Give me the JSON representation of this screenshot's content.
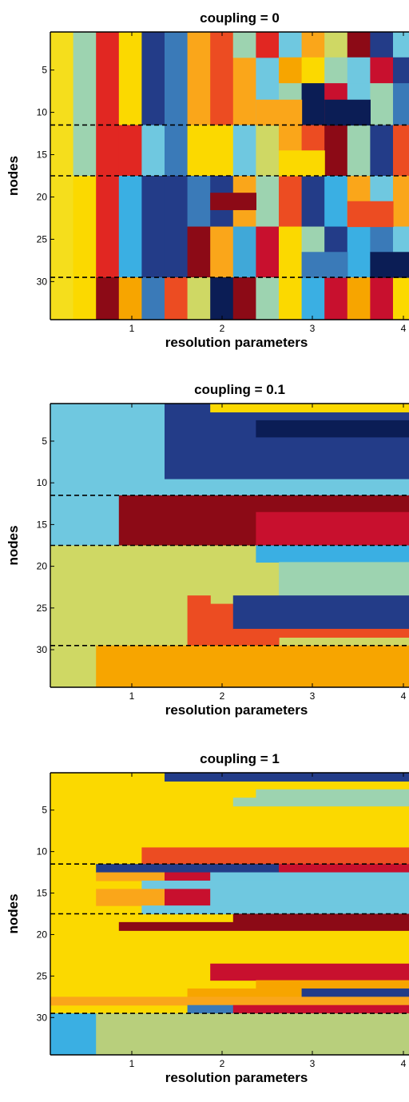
{
  "colors": {
    "Y": "#f5de1c",
    "A": "#9dd3b0",
    "R": "#e12722",
    "G": "#fbd900",
    "N": "#233c88",
    "B": "#3a7ab8",
    "O": "#faa61a",
    "F": "#ec4c22",
    "S": "#f7a500",
    "C": "#6fc8e0",
    "L": "#cfd864",
    "D": "#0b1d55",
    "M": "#8c0a16",
    "K": "#3aafe3",
    "P": "#c8102e",
    "E": "#40a8d8",
    "W": "#b8cf7c"
  },
  "chart_data": [
    {
      "type": "heatmap",
      "title": "coupling = 0",
      "xlabel": "resolution parameters",
      "ylabel": "nodes",
      "xticks": [
        "1",
        "2",
        "3",
        "4"
      ],
      "yticks": [
        "5",
        "10",
        "15",
        "20",
        "25",
        "30"
      ],
      "ylim": [
        0.5,
        34.5
      ],
      "xlim": [
        0.1,
        4.1
      ],
      "n_rows": 34,
      "separators": [
        11.5,
        17.5,
        29.5
      ],
      "layers": [
        {
          "x0": 0,
          "x1": 1,
          "y0": 1,
          "y1": 34,
          "c": "Y"
        },
        {
          "x0": 1,
          "x1": 2,
          "y0": 1,
          "y1": 17,
          "c": "A"
        },
        {
          "x0": 1,
          "x1": 2,
          "y0": 18,
          "y1": 34,
          "c": "G"
        },
        {
          "x0": 2,
          "x1": 3,
          "y0": 1,
          "y1": 29,
          "c": "R"
        },
        {
          "x0": 2,
          "x1": 3,
          "y0": 30,
          "y1": 34,
          "c": "M"
        },
        {
          "x0": 3,
          "x1": 4,
          "y0": 1,
          "y1": 11,
          "c": "G"
        },
        {
          "x0": 3,
          "x1": 4,
          "y0": 12,
          "y1": 17,
          "c": "R"
        },
        {
          "x0": 3,
          "x1": 4,
          "y0": 18,
          "y1": 29,
          "c": "K"
        },
        {
          "x0": 3,
          "x1": 4,
          "y0": 30,
          "y1": 34,
          "c": "S"
        },
        {
          "x0": 4,
          "x1": 5,
          "y0": 1,
          "y1": 11,
          "c": "N"
        },
        {
          "x0": 4,
          "x1": 5,
          "y0": 12,
          "y1": 17,
          "c": "C"
        },
        {
          "x0": 4,
          "x1": 5,
          "y0": 18,
          "y1": 29,
          "c": "N"
        },
        {
          "x0": 4,
          "x1": 5,
          "y0": 30,
          "y1": 34,
          "c": "B"
        },
        {
          "x0": 5,
          "x1": 6,
          "y0": 1,
          "y1": 17,
          "c": "B"
        },
        {
          "x0": 5,
          "x1": 6,
          "y0": 18,
          "y1": 29,
          "c": "N"
        },
        {
          "x0": 5,
          "x1": 6,
          "y0": 30,
          "y1": 34,
          "c": "F"
        },
        {
          "x0": 6,
          "x1": 7,
          "y0": 1,
          "y1": 11,
          "c": "O"
        },
        {
          "x0": 6,
          "x1": 7,
          "y0": 12,
          "y1": 17,
          "c": "G"
        },
        {
          "x0": 6,
          "x1": 7,
          "y0": 18,
          "y1": 23,
          "c": "B"
        },
        {
          "x0": 6,
          "x1": 7,
          "y0": 24,
          "y1": 29,
          "c": "M"
        },
        {
          "x0": 6,
          "x1": 7,
          "y0": 30,
          "y1": 34,
          "c": "L"
        },
        {
          "x0": 7,
          "x1": 8,
          "y0": 1,
          "y1": 11,
          "c": "F"
        },
        {
          "x0": 7,
          "x1": 8,
          "y0": 12,
          "y1": 17,
          "c": "G"
        },
        {
          "x0": 7,
          "x1": 8,
          "y0": 18,
          "y1": 23,
          "c": "N"
        },
        {
          "x0": 7,
          "x1": 8,
          "y0": 24,
          "y1": 29,
          "c": "O"
        },
        {
          "x0": 7,
          "x1": 8,
          "y0": 30,
          "y1": 34,
          "c": "D"
        },
        {
          "x0": 8,
          "x1": 9,
          "y0": 1,
          "y1": 11,
          "c": "O"
        },
        {
          "x0": 8,
          "x1": 9,
          "y0": 12,
          "y1": 17,
          "c": "C"
        },
        {
          "x0": 8,
          "x1": 9,
          "y0": 18,
          "y1": 23,
          "c": "O"
        },
        {
          "x0": 8,
          "x1": 9,
          "y0": 24,
          "y1": 29,
          "c": "E"
        },
        {
          "x0": 8,
          "x1": 9,
          "y0": 30,
          "y1": 34,
          "c": "M"
        },
        {
          "x0": 9,
          "x1": 10,
          "y0": 1,
          "y1": 11,
          "c": "C"
        },
        {
          "x0": 9,
          "x1": 10,
          "y0": 12,
          "y1": 17,
          "c": "L"
        },
        {
          "x0": 9,
          "x1": 10,
          "y0": 18,
          "y1": 23,
          "c": "A"
        },
        {
          "x0": 9,
          "x1": 10,
          "y0": 24,
          "y1": 29,
          "c": "P"
        },
        {
          "x0": 9,
          "x1": 10,
          "y0": 30,
          "y1": 34,
          "c": "A"
        },
        {
          "x0": 10,
          "x1": 11,
          "y0": 1,
          "y1": 11,
          "c": "A"
        },
        {
          "x0": 10,
          "x1": 11,
          "y0": 12,
          "y1": 17,
          "c": "O"
        },
        {
          "x0": 10,
          "x1": 11,
          "y0": 18,
          "y1": 23,
          "c": "F"
        },
        {
          "x0": 10,
          "x1": 11,
          "y0": 24,
          "y1": 29,
          "c": "G"
        },
        {
          "x0": 10,
          "x1": 11,
          "y0": 30,
          "y1": 34,
          "c": "G"
        },
        {
          "x0": 11,
          "x1": 12,
          "y0": 1,
          "y1": 11,
          "c": "D"
        },
        {
          "x0": 11,
          "x1": 12,
          "y0": 12,
          "y1": 17,
          "c": "F"
        },
        {
          "x0": 11,
          "x1": 12,
          "y0": 18,
          "y1": 23,
          "c": "N"
        },
        {
          "x0": 11,
          "x1": 12,
          "y0": 24,
          "y1": 29,
          "c": "A"
        },
        {
          "x0": 11,
          "x1": 12,
          "y0": 30,
          "y1": 34,
          "c": "K"
        },
        {
          "x0": 12,
          "x1": 13,
          "y0": 1,
          "y1": 11,
          "c": "P"
        },
        {
          "x0": 12,
          "x1": 13,
          "y0": 12,
          "y1": 17,
          "c": "M"
        },
        {
          "x0": 12,
          "x1": 13,
          "y0": 18,
          "y1": 23,
          "c": "K"
        },
        {
          "x0": 12,
          "x1": 13,
          "y0": 24,
          "y1": 29,
          "c": "N"
        },
        {
          "x0": 12,
          "x1": 13,
          "y0": 30,
          "y1": 34,
          "c": "P"
        },
        {
          "x0": 13,
          "x1": 14,
          "y0": 1,
          "y1": 11,
          "c": "C"
        },
        {
          "x0": 13,
          "x1": 14,
          "y0": 12,
          "y1": 17,
          "c": "A"
        },
        {
          "x0": 13,
          "x1": 14,
          "y0": 18,
          "y1": 23,
          "c": "O"
        },
        {
          "x0": 13,
          "x1": 14,
          "y0": 24,
          "y1": 29,
          "c": "K"
        },
        {
          "x0": 13,
          "x1": 14,
          "y0": 30,
          "y1": 34,
          "c": "S"
        },
        {
          "x0": 14,
          "x1": 15,
          "y0": 1,
          "y1": 11,
          "c": "A"
        },
        {
          "x0": 14,
          "x1": 15,
          "y0": 12,
          "y1": 17,
          "c": "N"
        },
        {
          "x0": 14,
          "x1": 15,
          "y0": 18,
          "y1": 23,
          "c": "C"
        },
        {
          "x0": 14,
          "x1": 15,
          "y0": 24,
          "y1": 29,
          "c": "B"
        },
        {
          "x0": 14,
          "x1": 15,
          "y0": 30,
          "y1": 34,
          "c": "P"
        },
        {
          "x0": 15,
          "x1": 16,
          "y0": 1,
          "y1": 11,
          "c": "B"
        },
        {
          "x0": 15,
          "x1": 16,
          "y0": 12,
          "y1": 17,
          "c": "F"
        },
        {
          "x0": 15,
          "x1": 16,
          "y0": 18,
          "y1": 23,
          "c": "O"
        },
        {
          "x0": 15,
          "x1": 16,
          "y0": 24,
          "y1": 29,
          "c": "C"
        },
        {
          "x0": 15,
          "x1": 16,
          "y0": 30,
          "y1": 34,
          "c": "G"
        },
        {
          "x0": 8,
          "x1": 9,
          "y0": 1,
          "y1": 3,
          "c": "A"
        },
        {
          "x0": 9,
          "x1": 10,
          "y0": 1,
          "y1": 3,
          "c": "R"
        },
        {
          "x0": 10,
          "x1": 11,
          "y0": 1,
          "y1": 3,
          "c": "C"
        },
        {
          "x0": 10,
          "x1": 11,
          "y0": 4,
          "y1": 6,
          "c": "S"
        },
        {
          "x0": 11,
          "x1": 12,
          "y0": 1,
          "y1": 3,
          "c": "O"
        },
        {
          "x0": 11,
          "x1": 12,
          "y0": 4,
          "y1": 6,
          "c": "G"
        },
        {
          "x0": 12,
          "x1": 13,
          "y0": 1,
          "y1": 3,
          "c": "L"
        },
        {
          "x0": 12,
          "x1": 13,
          "y0": 4,
          "y1": 6,
          "c": "A"
        },
        {
          "x0": 13,
          "x1": 14,
          "y0": 1,
          "y1": 3,
          "c": "M"
        },
        {
          "x0": 13,
          "x1": 14,
          "y0": 4,
          "y1": 6,
          "c": "C"
        },
        {
          "x0": 14,
          "x1": 15,
          "y0": 1,
          "y1": 3,
          "c": "N"
        },
        {
          "x0": 14,
          "x1": 15,
          "y0": 4,
          "y1": 6,
          "c": "P"
        },
        {
          "x0": 15,
          "x1": 16,
          "y0": 1,
          "y1": 3,
          "c": "C"
        },
        {
          "x0": 15,
          "x1": 16,
          "y0": 4,
          "y1": 6,
          "c": "N"
        },
        {
          "x0": 16,
          "x1": 17,
          "y0": 1,
          "y1": 3,
          "c": "N"
        },
        {
          "x0": 16,
          "x1": 17,
          "y0": 4,
          "y1": 6,
          "c": "O"
        },
        {
          "x0": 17,
          "x1": 18,
          "y0": 1,
          "y1": 3,
          "c": "B"
        },
        {
          "x0": 17,
          "x1": 18,
          "y0": 4,
          "y1": 6,
          "c": "C"
        },
        {
          "x0": 16,
          "x1": 18,
          "y0": 7,
          "y1": 11,
          "c": "A"
        },
        {
          "x0": 16,
          "x1": 18,
          "y0": 12,
          "y1": 17,
          "c": "O"
        },
        {
          "x0": 16,
          "x1": 18,
          "y0": 18,
          "y1": 23,
          "c": "M"
        },
        {
          "x0": 16,
          "x1": 18,
          "y0": 24,
          "y1": 29,
          "c": "A"
        },
        {
          "x0": 16,
          "x1": 18,
          "y0": 30,
          "y1": 34,
          "c": "Y"
        },
        {
          "x0": 9,
          "x1": 11,
          "y0": 9,
          "y1": 11,
          "c": "O"
        },
        {
          "x0": 12,
          "x1": 14,
          "y0": 9,
          "y1": 11,
          "c": "D"
        },
        {
          "x0": 10,
          "x1": 12,
          "y0": 15,
          "y1": 17,
          "c": "G"
        },
        {
          "x0": 13,
          "x1": 15,
          "y0": 21,
          "y1": 23,
          "c": "F"
        },
        {
          "x0": 7,
          "x1": 9,
          "y0": 20,
          "y1": 21,
          "c": "M"
        },
        {
          "x0": 11,
          "x1": 13,
          "y0": 27,
          "y1": 29,
          "c": "B"
        },
        {
          "x0": 14,
          "x1": 16,
          "y0": 27,
          "y1": 29,
          "c": "D"
        }
      ]
    },
    {
      "type": "heatmap",
      "title": "coupling = 0.1",
      "xlabel": "resolution parameters",
      "ylabel": "nodes",
      "xticks": [
        "1",
        "2",
        "3",
        "4"
      ],
      "yticks": [
        "5",
        "10",
        "15",
        "20",
        "25",
        "30"
      ],
      "ylim": [
        0.5,
        34.5
      ],
      "xlim": [
        0.1,
        4.1
      ],
      "n_rows": 34,
      "separators": [
        11.5,
        17.5,
        29.5
      ],
      "layers": [
        {
          "x0": 0,
          "x1": 18,
          "y0": 1,
          "y1": 17,
          "c": "C"
        },
        {
          "x0": 5,
          "x1": 18,
          "y0": 1,
          "y1": 9,
          "c": "N"
        },
        {
          "x0": 7,
          "x1": 18,
          "y0": 1,
          "y1": 1,
          "c": "G"
        },
        {
          "x0": 9,
          "x1": 18,
          "y0": 3,
          "y1": 4,
          "c": "D"
        },
        {
          "x0": 3,
          "x1": 18,
          "y0": 12,
          "y1": 17,
          "c": "M"
        },
        {
          "x0": 9,
          "x1": 18,
          "y0": 14,
          "y1": 17,
          "c": "P"
        },
        {
          "x0": 0,
          "x1": 18,
          "y0": 18,
          "y1": 34,
          "c": "L"
        },
        {
          "x0": 9,
          "x1": 18,
          "y0": 18,
          "y1": 19,
          "c": "K"
        },
        {
          "x0": 10,
          "x1": 18,
          "y0": 20,
          "y1": 23,
          "c": "A"
        },
        {
          "x0": 6,
          "x1": 7,
          "y0": 24,
          "y1": 29,
          "c": "F"
        },
        {
          "x0": 7,
          "x1": 8,
          "y0": 25,
          "y1": 29,
          "c": "F"
        },
        {
          "x0": 8,
          "x1": 18,
          "y0": 24,
          "y1": 27,
          "c": "N"
        },
        {
          "x0": 8,
          "x1": 10,
          "y0": 28,
          "y1": 29,
          "c": "F"
        },
        {
          "x0": 10,
          "x1": 18,
          "y0": 28,
          "y1": 28,
          "c": "F"
        },
        {
          "x0": 2,
          "x1": 18,
          "y0": 30,
          "y1": 34,
          "c": "S"
        }
      ]
    },
    {
      "type": "heatmap",
      "title": "coupling = 1",
      "xlabel": "resolution parameters",
      "ylabel": "nodes",
      "xticks": [
        "1",
        "2",
        "3",
        "4"
      ],
      "yticks": [
        "5",
        "10",
        "15",
        "20",
        "25",
        "30"
      ],
      "ylim": [
        0.5,
        34.5
      ],
      "xlim": [
        0.1,
        4.1
      ],
      "n_rows": 34,
      "separators": [
        11.5,
        17.5,
        29.5
      ],
      "layers": [
        {
          "x0": 0,
          "x1": 18,
          "y0": 1,
          "y1": 34,
          "c": "G"
        },
        {
          "x0": 5,
          "x1": 18,
          "y0": 1,
          "y1": 1,
          "c": "N"
        },
        {
          "x0": 9,
          "x1": 18,
          "y0": 3,
          "y1": 3,
          "c": "A"
        },
        {
          "x0": 8,
          "x1": 18,
          "y0": 4,
          "y1": 4,
          "c": "A"
        },
        {
          "x0": 4,
          "x1": 18,
          "y0": 10,
          "y1": 11,
          "c": "F"
        },
        {
          "x0": 2,
          "x1": 10,
          "y0": 12,
          "y1": 12,
          "c": "N"
        },
        {
          "x0": 10,
          "x1": 18,
          "y0": 12,
          "y1": 12,
          "c": "P"
        },
        {
          "x0": 2,
          "x1": 5,
          "y0": 13,
          "y1": 13,
          "c": "O"
        },
        {
          "x0": 5,
          "x1": 7,
          "y0": 13,
          "y1": 13,
          "c": "P"
        },
        {
          "x0": 7,
          "x1": 18,
          "y0": 13,
          "y1": 13,
          "c": "C"
        },
        {
          "x0": 4,
          "x1": 18,
          "y0": 14,
          "y1": 14,
          "c": "C"
        },
        {
          "x0": 2,
          "x1": 5,
          "y0": 15,
          "y1": 16,
          "c": "O"
        },
        {
          "x0": 5,
          "x1": 7,
          "y0": 15,
          "y1": 16,
          "c": "P"
        },
        {
          "x0": 7,
          "x1": 18,
          "y0": 15,
          "y1": 16,
          "c": "C"
        },
        {
          "x0": 4,
          "x1": 18,
          "y0": 17,
          "y1": 17,
          "c": "C"
        },
        {
          "x0": 8,
          "x1": 18,
          "y0": 18,
          "y1": 18,
          "c": "M"
        },
        {
          "x0": 3,
          "x1": 18,
          "y0": 19,
          "y1": 19,
          "c": "M"
        },
        {
          "x0": 7,
          "x1": 18,
          "y0": 24,
          "y1": 25,
          "c": "P"
        },
        {
          "x0": 9,
          "x1": 18,
          "y0": 26,
          "y1": 26,
          "c": "S"
        },
        {
          "x0": 6,
          "x1": 18,
          "y0": 27,
          "y1": 27,
          "c": "S"
        },
        {
          "x0": 11,
          "x1": 18,
          "y0": 27,
          "y1": 27,
          "c": "N"
        },
        {
          "x0": 0,
          "x1": 18,
          "y0": 28,
          "y1": 28,
          "c": "O"
        },
        {
          "x0": 6,
          "x1": 8,
          "y0": 29,
          "y1": 29,
          "c": "B"
        },
        {
          "x0": 8,
          "x1": 18,
          "y0": 29,
          "y1": 29,
          "c": "P"
        },
        {
          "x0": 0,
          "x1": 2,
          "y0": 30,
          "y1": 34,
          "c": "K"
        },
        {
          "x0": 2,
          "x1": 18,
          "y0": 30,
          "y1": 34,
          "c": "W"
        }
      ]
    }
  ]
}
